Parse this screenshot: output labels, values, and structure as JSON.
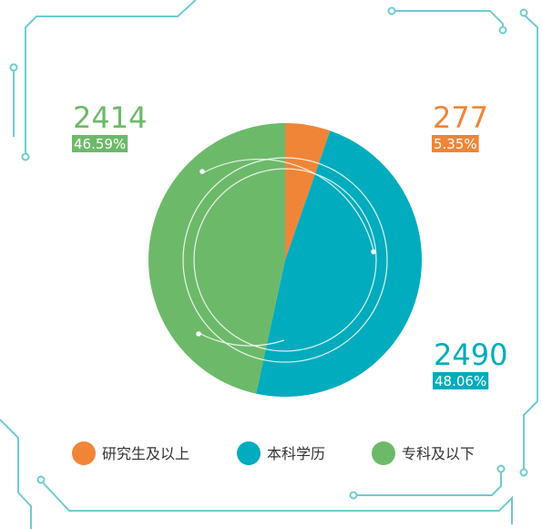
{
  "chart_data": {
    "type": "pie",
    "categories": [
      "研究生及以上",
      "本科学历",
      "专科及以下"
    ],
    "values": [
      277,
      2490,
      2414
    ],
    "percent_labels": [
      "5.35%",
      "48.06%",
      "46.59%"
    ],
    "colors": [
      "#f08537",
      "#00acbd",
      "#6db96a"
    ]
  }
}
